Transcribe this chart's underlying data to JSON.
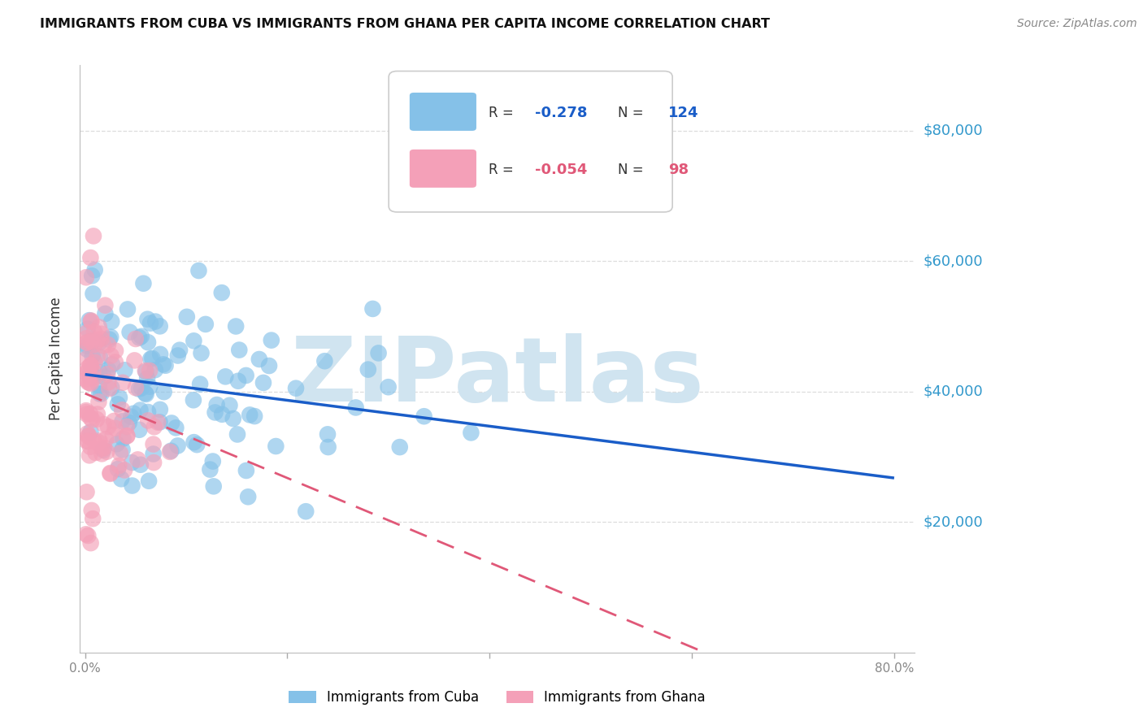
{
  "title": "IMMIGRANTS FROM CUBA VS IMMIGRANTS FROM GHANA PER CAPITA INCOME CORRELATION CHART",
  "source": "Source: ZipAtlas.com",
  "ylabel": "Per Capita Income",
  "xlim": [
    -0.005,
    0.82
  ],
  "ylim": [
    0,
    90000
  ],
  "ytick_vals": [
    20000,
    40000,
    60000,
    80000
  ],
  "ytick_labels": [
    "$20,000",
    "$40,000",
    "$60,000",
    "$80,000"
  ],
  "xtick_vals": [
    0.0,
    0.2,
    0.4,
    0.6,
    0.8
  ],
  "xtick_labels": [
    "0.0%",
    "",
    "",
    "",
    "80.0%"
  ],
  "cuba_R": -0.278,
  "cuba_N": 124,
  "ghana_R": -0.054,
  "ghana_N": 98,
  "cuba_color": "#85C1E8",
  "ghana_color": "#F4A0B8",
  "cuba_line_color": "#1A5DC8",
  "ghana_line_color": "#E05878",
  "watermark": "ZIPatlas",
  "watermark_color": "#D0E4F0",
  "background_color": "#FFFFFF",
  "grid_color": "#DDDDDD",
  "title_color": "#111111",
  "source_color": "#888888",
  "ylabel_color": "#333333",
  "right_label_color": "#3399CC",
  "legend_edge_color": "#CCCCCC"
}
